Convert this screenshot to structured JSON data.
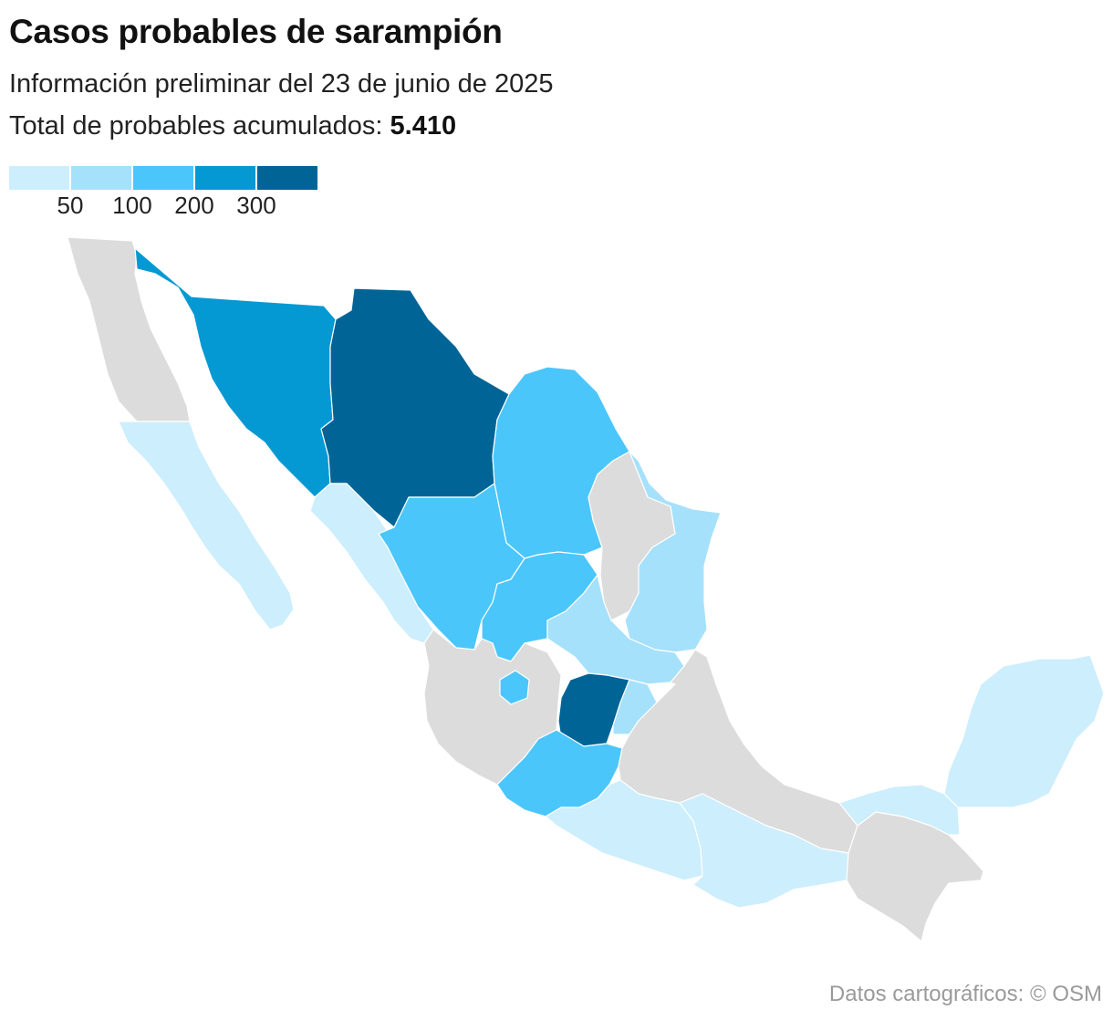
{
  "header": {
    "title": "Casos probables de sarampión",
    "subtitle": "Información preliminar del 23 de junio de 2025",
    "total_label": "Total de probables acumulados:",
    "total_value": "5.410"
  },
  "legend": {
    "colors": [
      "#cdeefc",
      "#a6e1fb",
      "#4bc6fb",
      "#0499d3",
      "#006496"
    ],
    "ticks": [
      "50",
      "100",
      "200",
      "300"
    ]
  },
  "colors": {
    "no_data": "#dcdcdc",
    "class_1": "#cdeefc",
    "class_2": "#a6e1fb",
    "class_3": "#4bc6fb",
    "class_4": "#0499d3",
    "class_5": "#006496"
  },
  "credit": "Datos cartográficos: © OSM"
}
